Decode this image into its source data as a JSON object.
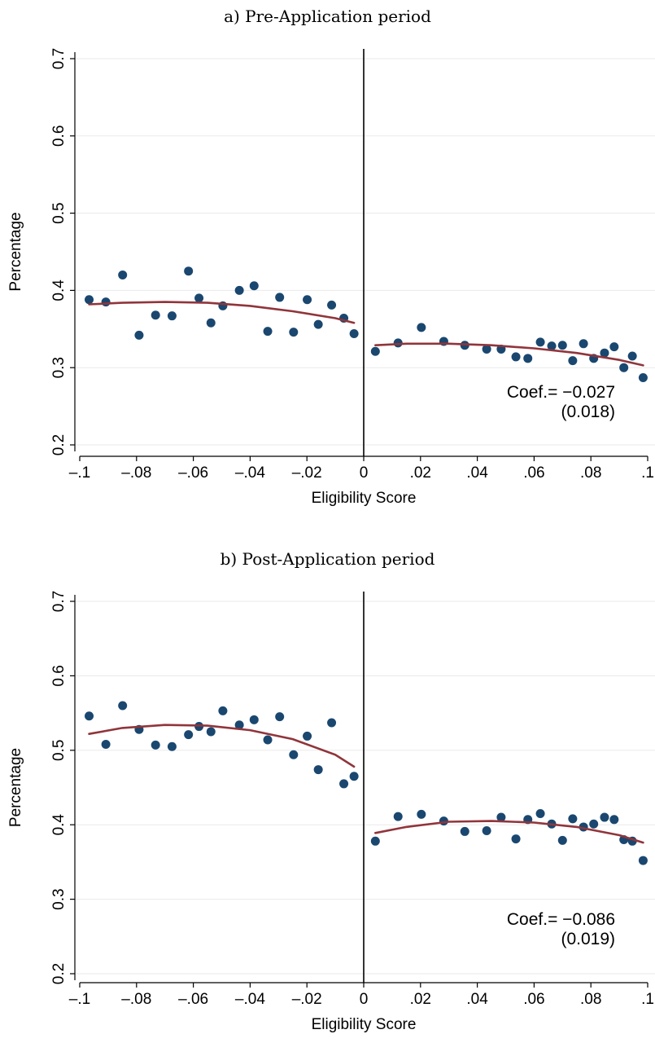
{
  "chart_data": [
    {
      "type": "scatter",
      "title": "a) Pre-Application period",
      "xlabel": "Eligibility Score",
      "ylabel": "Percentage",
      "xlim": [
        -0.1,
        0.1
      ],
      "ylim": [
        0.2,
        0.7
      ],
      "x_ticks": [
        -0.1,
        -0.08,
        -0.06,
        -0.04,
        -0.02,
        0,
        0.02,
        0.04,
        0.06,
        0.08,
        0.1
      ],
      "x_tick_labels": [
        "–.1",
        "–.08",
        "–.06",
        "–.04",
        "–.02",
        "0",
        ".02",
        ".04",
        ".06",
        ".08",
        ".1"
      ],
      "y_ticks": [
        0.2,
        0.3,
        0.4,
        0.5,
        0.6,
        0.7
      ],
      "y_tick_labels": [
        "0.2",
        "0.3",
        "0.4",
        "0.5",
        "0.6",
        "0.7"
      ],
      "grid": true,
      "cutoff": 0,
      "annotation": {
        "coef": "Coef.= −0.027",
        "se": "(0.018)"
      },
      "colors": {
        "points": "#1a476f",
        "fit": "#90353b",
        "grid": "#eaeaea"
      },
      "points": [
        [
          -0.0967,
          0.388
        ],
        [
          -0.0908,
          0.385
        ],
        [
          -0.0849,
          0.42
        ],
        [
          -0.0791,
          0.342
        ],
        [
          -0.0733,
          0.368
        ],
        [
          -0.0675,
          0.367
        ],
        [
          -0.0617,
          0.425
        ],
        [
          -0.058,
          0.39
        ],
        [
          -0.0538,
          0.358
        ],
        [
          -0.0496,
          0.38
        ],
        [
          -0.0438,
          0.4
        ],
        [
          -0.0386,
          0.406
        ],
        [
          -0.0338,
          0.347
        ],
        [
          -0.0296,
          0.391
        ],
        [
          -0.0247,
          0.346
        ],
        [
          -0.0199,
          0.388
        ],
        [
          -0.016,
          0.356
        ],
        [
          -0.0113,
          0.381
        ],
        [
          -0.007,
          0.364
        ],
        [
          -0.0034,
          0.344
        ],
        [
          0.0041,
          0.321
        ],
        [
          0.0121,
          0.332
        ],
        [
          0.0203,
          0.352
        ],
        [
          0.0282,
          0.334
        ],
        [
          0.0356,
          0.329
        ],
        [
          0.0433,
          0.324
        ],
        [
          0.0484,
          0.324
        ],
        [
          0.0536,
          0.314
        ],
        [
          0.0578,
          0.312
        ],
        [
          0.0622,
          0.333
        ],
        [
          0.0662,
          0.328
        ],
        [
          0.07,
          0.329
        ],
        [
          0.0736,
          0.309
        ],
        [
          0.0774,
          0.331
        ],
        [
          0.081,
          0.312
        ],
        [
          0.0848,
          0.319
        ],
        [
          0.0882,
          0.327
        ],
        [
          0.0916,
          0.3
        ],
        [
          0.0946,
          0.315
        ],
        [
          0.0984,
          0.287
        ]
      ],
      "fit_left": [
        [
          -0.0967,
          0.382
        ],
        [
          -0.085,
          0.384
        ],
        [
          -0.07,
          0.385
        ],
        [
          -0.055,
          0.384
        ],
        [
          -0.04,
          0.38
        ],
        [
          -0.025,
          0.373
        ],
        [
          -0.01,
          0.364
        ],
        [
          -0.0034,
          0.358
        ]
      ],
      "fit_right": [
        [
          0.0041,
          0.329
        ],
        [
          0.015,
          0.331
        ],
        [
          0.03,
          0.331
        ],
        [
          0.045,
          0.329
        ],
        [
          0.06,
          0.325
        ],
        [
          0.075,
          0.319
        ],
        [
          0.09,
          0.31
        ],
        [
          0.0984,
          0.303
        ]
      ]
    },
    {
      "type": "scatter",
      "title": "b) Post-Application period",
      "xlabel": "Eligibility Score",
      "ylabel": "Percentage",
      "xlim": [
        -0.1,
        0.1
      ],
      "ylim": [
        0.2,
        0.7
      ],
      "x_ticks": [
        -0.1,
        -0.08,
        -0.06,
        -0.04,
        -0.02,
        0,
        0.02,
        0.04,
        0.06,
        0.08,
        0.1
      ],
      "x_tick_labels": [
        "–.1",
        "–.08",
        "–.06",
        "–.04",
        "–.02",
        "0",
        ".02",
        ".04",
        ".06",
        ".08",
        ".1"
      ],
      "y_ticks": [
        0.2,
        0.3,
        0.4,
        0.5,
        0.6,
        0.7
      ],
      "y_tick_labels": [
        "0.2",
        "0.3",
        "0.4",
        "0.5",
        "0.6",
        "0.7"
      ],
      "grid": true,
      "cutoff": 0,
      "annotation": {
        "coef": "Coef.= −0.086",
        "se": "(0.019)"
      },
      "colors": {
        "points": "#1a476f",
        "fit": "#90353b",
        "grid": "#eaeaea"
      },
      "points": [
        [
          -0.0967,
          0.546
        ],
        [
          -0.0908,
          0.508
        ],
        [
          -0.0849,
          0.56
        ],
        [
          -0.0791,
          0.528
        ],
        [
          -0.0733,
          0.507
        ],
        [
          -0.0675,
          0.505
        ],
        [
          -0.0617,
          0.521
        ],
        [
          -0.058,
          0.532
        ],
        [
          -0.0538,
          0.525
        ],
        [
          -0.0496,
          0.553
        ],
        [
          -0.0438,
          0.534
        ],
        [
          -0.0386,
          0.541
        ],
        [
          -0.0338,
          0.514
        ],
        [
          -0.0296,
          0.545
        ],
        [
          -0.0247,
          0.494
        ],
        [
          -0.0199,
          0.519
        ],
        [
          -0.016,
          0.474
        ],
        [
          -0.0113,
          0.537
        ],
        [
          -0.007,
          0.455
        ],
        [
          -0.0034,
          0.465
        ],
        [
          0.0041,
          0.378
        ],
        [
          0.0121,
          0.411
        ],
        [
          0.0203,
          0.414
        ],
        [
          0.0282,
          0.405
        ],
        [
          0.0356,
          0.391
        ],
        [
          0.0433,
          0.392
        ],
        [
          0.0484,
          0.41
        ],
        [
          0.0536,
          0.381
        ],
        [
          0.0578,
          0.407
        ],
        [
          0.0622,
          0.415
        ],
        [
          0.0662,
          0.401
        ],
        [
          0.07,
          0.379
        ],
        [
          0.0736,
          0.408
        ],
        [
          0.0774,
          0.397
        ],
        [
          0.081,
          0.401
        ],
        [
          0.0848,
          0.41
        ],
        [
          0.0882,
          0.407
        ],
        [
          0.0916,
          0.38
        ],
        [
          0.0946,
          0.378
        ],
        [
          0.0984,
          0.352
        ]
      ],
      "fit_left": [
        [
          -0.0967,
          0.522
        ],
        [
          -0.085,
          0.53
        ],
        [
          -0.07,
          0.534
        ],
        [
          -0.055,
          0.533
        ],
        [
          -0.04,
          0.527
        ],
        [
          -0.025,
          0.515
        ],
        [
          -0.01,
          0.494
        ],
        [
          -0.0034,
          0.478
        ]
      ],
      "fit_right": [
        [
          0.0041,
          0.389
        ],
        [
          0.015,
          0.397
        ],
        [
          0.03,
          0.404
        ],
        [
          0.045,
          0.405
        ],
        [
          0.06,
          0.403
        ],
        [
          0.075,
          0.397
        ],
        [
          0.09,
          0.386
        ],
        [
          0.0984,
          0.376
        ]
      ]
    }
  ]
}
